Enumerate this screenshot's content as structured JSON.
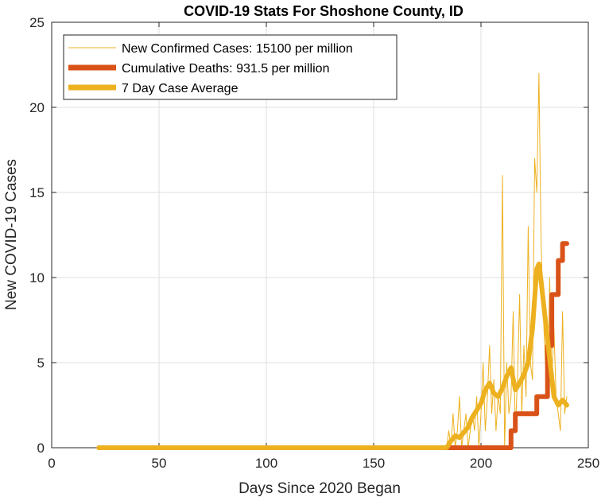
{
  "chart_data": {
    "type": "line",
    "title": "COVID-19 Stats For Shoshone County, ID",
    "xlabel": "Days Since 2020 Began",
    "ylabel": "New COVID-19 Cases",
    "xlim": [
      0,
      250
    ],
    "ylim": [
      0,
      25
    ],
    "xticks": [
      0,
      50,
      100,
      150,
      200,
      250
    ],
    "yticks": [
      0,
      5,
      10,
      15,
      20,
      25
    ],
    "grid": true,
    "legend_position": "top-left",
    "series": [
      {
        "name": "New Confirmed Cases: 15100 per million",
        "color": "#EDB120",
        "style": "thin",
        "x": [
          22,
          184,
          185,
          186,
          187,
          188,
          189,
          190,
          191,
          192,
          193,
          194,
          195,
          196,
          197,
          198,
          199,
          200,
          201,
          202,
          203,
          204,
          205,
          206,
          207,
          208,
          209,
          210,
          211,
          212,
          213,
          214,
          215,
          216,
          217,
          218,
          219,
          220,
          221,
          222,
          223,
          224,
          225,
          226,
          227,
          228,
          229,
          230,
          231,
          232,
          233,
          234,
          235,
          236,
          237,
          238,
          239,
          240
        ],
        "y": [
          0,
          0,
          1,
          0,
          2,
          0,
          1,
          3,
          0,
          1,
          2,
          0,
          1,
          2,
          1,
          3,
          0,
          2,
          5,
          1,
          3,
          6,
          2,
          4,
          1,
          3,
          2,
          16,
          0,
          5,
          2,
          3,
          8,
          1,
          4,
          9,
          2,
          6,
          3,
          13,
          5,
          4,
          17,
          15,
          22,
          12,
          8,
          5,
          3,
          10,
          4,
          7,
          3,
          2,
          1,
          8,
          2,
          3
        ]
      },
      {
        "name": "Cumulative Deaths: 931.5 per million",
        "color": "#D95319",
        "style": "thick",
        "x": [
          22,
          210,
          211,
          213,
          214,
          215,
          216,
          217,
          218,
          219,
          220,
          221,
          222,
          223,
          224,
          225,
          226,
          227,
          228,
          229,
          230,
          231,
          232,
          233,
          234,
          235,
          236,
          237,
          238,
          239,
          240
        ],
        "y": [
          0,
          0,
          0,
          0,
          1,
          1,
          2,
          2,
          2,
          2,
          2,
          2,
          2,
          2,
          2,
          2,
          3,
          3,
          3,
          3,
          3,
          6,
          6,
          9,
          9,
          9,
          11,
          11,
          12,
          12,
          12
        ]
      },
      {
        "name": "7 Day Case Average",
        "color": "#EDB120",
        "style": "thick",
        "x": [
          22,
          184,
          186,
          188,
          190,
          192,
          194,
          196,
          198,
          200,
          202,
          204,
          206,
          208,
          210,
          212,
          214,
          216,
          218,
          220,
          222,
          224,
          226,
          227,
          228,
          230,
          232,
          234,
          236,
          238,
          240
        ],
        "y": [
          0,
          0,
          0.4,
          0.7,
          0.6,
          0.9,
          1.2,
          1.8,
          2.2,
          2.6,
          3.4,
          3.8,
          3.2,
          3.0,
          3.5,
          4.2,
          4.7,
          3.4,
          3.8,
          4.3,
          5.0,
          7.0,
          10.5,
          10.8,
          9.8,
          7.5,
          5.2,
          3.0,
          2.5,
          2.8,
          2.5
        ]
      }
    ]
  }
}
